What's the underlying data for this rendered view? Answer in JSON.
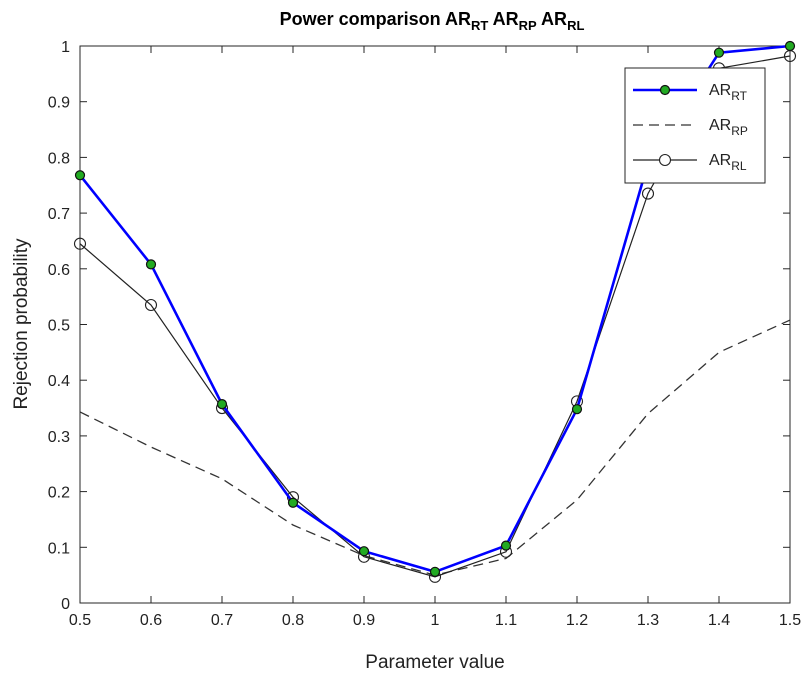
{
  "chart_data": {
    "type": "line",
    "title": {
      "parts": [
        {
          "text": "Power comparison "
        },
        {
          "text": "AR"
        },
        {
          "text": "RT",
          "sub": true
        },
        {
          "text": " AR"
        },
        {
          "text": "RP",
          "sub": true
        },
        {
          "text": " AR"
        },
        {
          "text": "RL",
          "sub": true
        }
      ]
    },
    "xlabel": "Parameter value",
    "ylabel": "Rejection probability",
    "xlim": [
      0.5,
      1.5
    ],
    "ylim": [
      0,
      1
    ],
    "xticks": [
      "0.5",
      "0.6",
      "0.7",
      "0.8",
      "0.9",
      "1",
      "1.1",
      "1.2",
      "1.3",
      "1.4",
      "1.5"
    ],
    "yticks": [
      "0",
      "0.1",
      "0.2",
      "0.3",
      "0.4",
      "0.5",
      "0.6",
      "0.7",
      "0.8",
      "0.9",
      "1"
    ],
    "grid": false,
    "legend_position": "top-right",
    "x": [
      0.5,
      0.6,
      0.7,
      0.8,
      0.9,
      1.0,
      1.1,
      1.2,
      1.3,
      1.4,
      1.5
    ],
    "series": [
      {
        "name": "AR",
        "name_sub": "RT",
        "values": [
          0.768,
          0.608,
          0.357,
          0.18,
          0.093,
          0.056,
          0.103,
          0.348,
          0.79,
          0.988,
          1.0
        ],
        "color": "#0000ff",
        "marker_fill": "#22aa22",
        "style": "solid-thick-filled-markers"
      },
      {
        "name": "AR",
        "name_sub": "RP",
        "values": [
          0.343,
          0.28,
          0.223,
          0.14,
          0.085,
          0.05,
          0.08,
          0.185,
          0.34,
          0.45,
          0.508
        ],
        "color": "#333333",
        "style": "dashed"
      },
      {
        "name": "AR",
        "name_sub": "RL",
        "values": [
          0.645,
          0.535,
          0.35,
          0.19,
          0.083,
          0.047,
          0.092,
          0.362,
          0.735,
          0.96,
          0.982
        ],
        "color": "#222222",
        "style": "solid-thin-open-markers"
      }
    ]
  }
}
